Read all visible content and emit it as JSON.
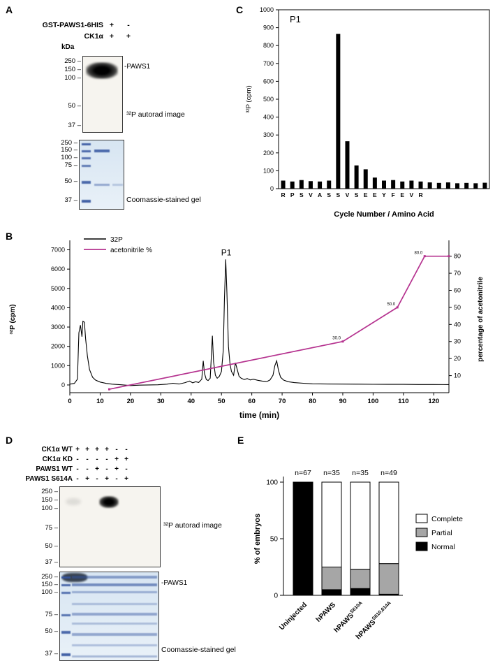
{
  "panel_labels": {
    "A": "A",
    "B": "B",
    "C": "C",
    "D": "D",
    "E": "E"
  },
  "panels": {
    "A": {
      "kda_label": "kDa",
      "conditions": [
        {
          "name": "GST-PAWS1-6HIS",
          "values": [
            "+",
            "-"
          ]
        },
        {
          "name": "CK1α",
          "values": [
            "+",
            "+"
          ]
        }
      ],
      "autorad": {
        "markers": [
          "250",
          "150",
          "100",
          "50",
          "37"
        ],
        "band_label": "-PAWS1",
        "caption": "³²P autorad image"
      },
      "coomassie": {
        "markers": [
          "250",
          "150",
          "100",
          "75",
          "50",
          "37"
        ],
        "caption": "Coomassie-stained gel"
      }
    },
    "D": {
      "conditions": [
        {
          "name": "CK1α WT",
          "values": [
            "+",
            "+",
            "+",
            "+",
            "-",
            "-"
          ]
        },
        {
          "name": "CK1α KD",
          "values": [
            "-",
            "-",
            "-",
            "-",
            "+",
            "+"
          ]
        },
        {
          "name": "PAWS1 WT",
          "values": [
            "-",
            "-",
            "+",
            "-",
            "+",
            "-"
          ]
        },
        {
          "name": "PAWS1 S614A",
          "values": [
            "-",
            "+",
            "-",
            "+",
            "-",
            "+"
          ]
        }
      ],
      "autorad": {
        "markers": [
          "250",
          "150",
          "100",
          "75",
          "50",
          "37"
        ],
        "caption": "³²P autorad image"
      },
      "coomassie": {
        "markers": [
          "250",
          "150",
          "100",
          "75",
          "50",
          "37"
        ],
        "band_label": "-PAWS1",
        "caption": "Coomassie-stained gel"
      }
    }
  },
  "chart_data": [
    {
      "panel": "C",
      "type": "bar",
      "title": "P1",
      "ylabel": "³²P (cpm)",
      "xlabel": "Cycle Number / Amino Acid",
      "ylim": [
        0,
        1000
      ],
      "ytick_step": 100,
      "categories": [
        "R",
        "P",
        "S",
        "V",
        "A",
        "S",
        "S",
        "V",
        "S",
        "E",
        "E",
        "Y",
        "F",
        "E",
        "V",
        "R",
        "",
        "",
        "",
        "",
        "",
        "",
        ""
      ],
      "values": [
        45,
        40,
        48,
        42,
        40,
        45,
        865,
        265,
        130,
        108,
        62,
        45,
        48,
        40,
        45,
        40,
        35,
        32,
        35,
        30,
        32,
        30,
        33
      ]
    },
    {
      "panel": "B",
      "type": "line",
      "xlabel": "time (min)",
      "ylabel_left": "³²P (cpm)",
      "ylabel_right": "percentage of acetonitrile",
      "annotation": {
        "text": "P1",
        "x": 51.6,
        "y": 6500
      },
      "xlim": [
        0,
        125
      ],
      "xtick_step": 10,
      "ylim_left": [
        -400,
        7200
      ],
      "yticks_left": [
        0,
        1000,
        2000,
        3000,
        4000,
        5000,
        6000,
        7000
      ],
      "ylim_right": [
        0,
        86
      ],
      "yticks_right": [
        10,
        20,
        30,
        40,
        50,
        60,
        70,
        80
      ],
      "series": [
        {
          "name": "32P",
          "color": "#000000",
          "axis": "left",
          "x": [
            0,
            1.5,
            2.5,
            3,
            3.5,
            4,
            4.3,
            4.8,
            5.2,
            5.8,
            6.5,
            7.5,
            8.5,
            10,
            12,
            14,
            17,
            20,
            23,
            26,
            29,
            32,
            34,
            36,
            38,
            39.5,
            40.5,
            41.5,
            42.5,
            43.5,
            44,
            44.4,
            45,
            45.6,
            46.3,
            47,
            47.4,
            48,
            48.6,
            49.3,
            50,
            50.6,
            51,
            51.4,
            51.8,
            52.3,
            52.8,
            53.3,
            54,
            54.6,
            55.2,
            55.8,
            56.5,
            57.5,
            58.5,
            59.5,
            60.5,
            62,
            63.5,
            65,
            66,
            67,
            67.6,
            68.2,
            68.8,
            69.5,
            70.5,
            72,
            74,
            77,
            80,
            85,
            90,
            95,
            100,
            105,
            110,
            115,
            120,
            125
          ],
          "y": [
            40,
            80,
            300,
            2700,
            3100,
            2500,
            3300,
            3250,
            2400,
            1500,
            800,
            400,
            250,
            150,
            80,
            40,
            10,
            -30,
            -10,
            0,
            10,
            40,
            90,
            50,
            120,
            200,
            110,
            170,
            130,
            300,
            1250,
            600,
            280,
            230,
            350,
            2550,
            1200,
            500,
            350,
            450,
            700,
            1800,
            4500,
            6500,
            4800,
            2000,
            1100,
            700,
            500,
            1150,
            800,
            450,
            350,
            280,
            330,
            260,
            300,
            240,
            200,
            180,
            260,
            500,
            1000,
            1250,
            750,
            400,
            250,
            170,
            120,
            90,
            60,
            50,
            45,
            40,
            35,
            30,
            30,
            25,
            25,
            20
          ]
        },
        {
          "name": "acetonitrile %",
          "color": "#b5328f",
          "axis": "right",
          "x": [
            13,
            90,
            108,
            117,
            125
          ],
          "y": [
            2,
            30,
            50,
            80,
            80
          ],
          "point_labels": [
            "",
            "30.0",
            "50.0",
            "80.0",
            ""
          ]
        }
      ]
    },
    {
      "panel": "E",
      "type": "stacked_bar",
      "ylabel": "% of embryos",
      "ylim": [
        0,
        100
      ],
      "yticks": [
        0,
        50,
        100
      ],
      "categories": [
        {
          "base": "Uninjected",
          "sup": ""
        },
        {
          "base": "hPAWS",
          "sup": ""
        },
        {
          "base": "hPAWS",
          "sup": "S610A"
        },
        {
          "base": "hPAWS",
          "sup": "S610,614A"
        }
      ],
      "n_labels": [
        "n=67",
        "n=35",
        "n=35",
        "n=49"
      ],
      "series": [
        {
          "name": "Normal",
          "color": "#000000",
          "values": [
            100,
            5,
            6,
            1
          ]
        },
        {
          "name": "Partial",
          "color": "#a6a6a6",
          "values": [
            0,
            20,
            17,
            27
          ]
        },
        {
          "name": "Complete",
          "color": "#ffffff",
          "values": [
            0,
            75,
            77,
            72
          ]
        }
      ],
      "legend_order": [
        "Complete",
        "Partial",
        "Normal"
      ],
      "legend_colors": {
        "Complete": "#ffffff",
        "Partial": "#a6a6a6",
        "Normal": "#000000"
      }
    }
  ]
}
